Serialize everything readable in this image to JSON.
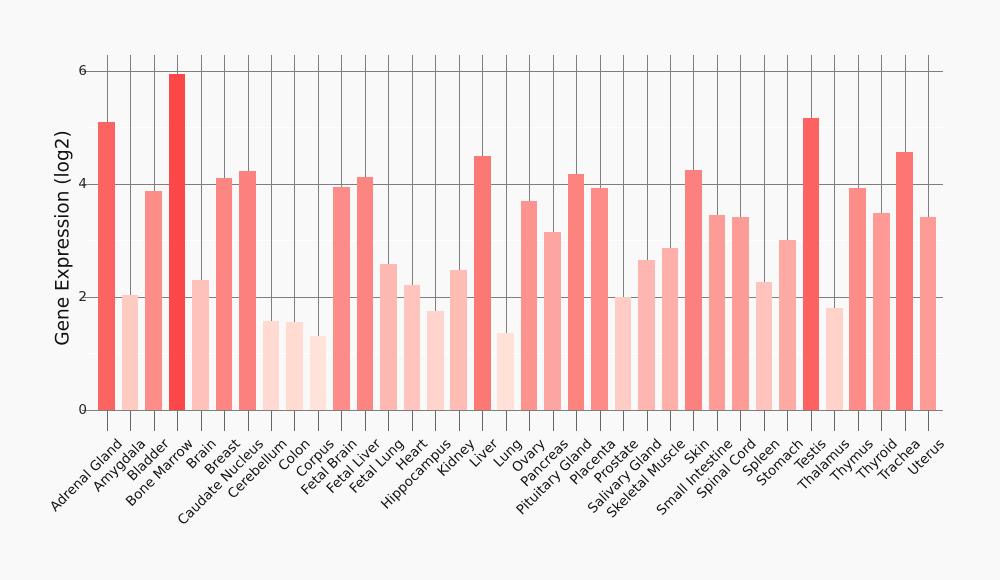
{
  "page": {
    "background_color": "#f9f9f9"
  },
  "chart_data": {
    "type": "bar",
    "title": "",
    "xlabel": "",
    "ylabel": "Gene Expression (log2)",
    "categories": [
      "Adrenal Gland",
      "Amygdala",
      "Bladder",
      "Bone Marrow",
      "Brain",
      "Breast",
      "Caudate Nucleus",
      "Cerebellum",
      "Colon",
      "Corpus",
      "Fetal Brain",
      "Fetal Liver",
      "Fetal Lung",
      "Heart",
      "Hippocampus",
      "Kidney",
      "Liver",
      "Lung",
      "Ovary",
      "Pancreas",
      "Pituitary Gland",
      "Placenta",
      "Prostate",
      "Salivary Gland",
      "Skeletal Muscle",
      "Skin",
      "Small Intestine",
      "Spinal Cord",
      "Spleen",
      "Stomach",
      "Testis",
      "Thalamus",
      "Thymus",
      "Thyroid",
      "Trachea",
      "Uterus"
    ],
    "values": [
      5.1,
      2.03,
      3.87,
      5.95,
      2.3,
      4.1,
      4.22,
      1.57,
      1.56,
      1.31,
      3.94,
      4.12,
      2.58,
      2.22,
      1.75,
      2.48,
      4.49,
      1.36,
      3.7,
      3.15,
      4.17,
      3.93,
      2.0,
      2.65,
      2.86,
      4.24,
      3.45,
      3.42,
      2.27,
      3.0,
      5.16,
      1.8,
      3.93,
      3.48,
      4.56,
      3.41
    ],
    "ylim": [
      0,
      6.28
    ],
    "yticks": [
      0,
      2,
      4,
      6
    ],
    "ytick_labels": [
      "0",
      "2",
      "4",
      "6"
    ],
    "minor_yticks": [
      1,
      3,
      5
    ],
    "legend": "none",
    "grid": {
      "major_color": "#7f7f7f",
      "minor_color": "#ffffff",
      "vertical_per_category": true
    },
    "color_scale": {
      "mapped_to": "value",
      "min_color": "#ffe3da",
      "max_color": "#fb4747"
    },
    "text_colors": {
      "tick_label": "#262626",
      "category_label": "#111111",
      "axis_label": "#111111"
    }
  }
}
